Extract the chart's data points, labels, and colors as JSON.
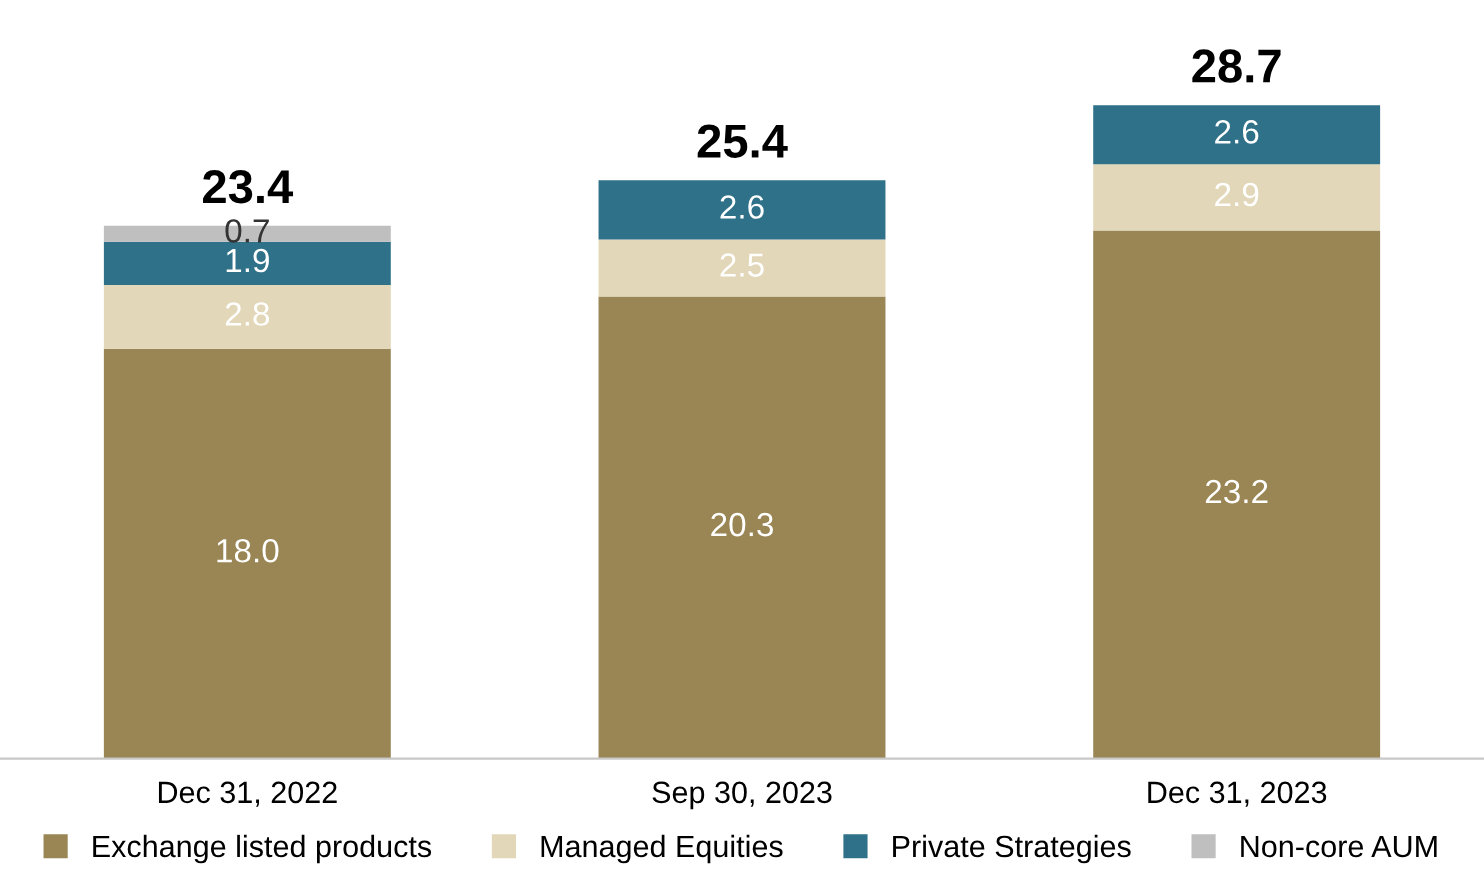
{
  "chart_data": {
    "type": "bar",
    "stacked": true,
    "legend": "bottom",
    "grid": false,
    "categories": [
      "Dec 31, 2022",
      "Sep 30, 2023",
      "Dec 31, 2023"
    ],
    "series": [
      {
        "name": "Exchange listed products",
        "color": "#9a8554",
        "values": [
          18.0,
          20.3,
          23.2
        ],
        "value_labels": [
          "18.0",
          "20.3",
          "23.2"
        ]
      },
      {
        "name": "Managed Equities",
        "color": "#e2d7b8",
        "values": [
          2.8,
          2.5,
          2.9
        ],
        "value_labels": [
          "2.8",
          "2.5",
          "2.9"
        ]
      },
      {
        "name": "Private Strategies",
        "color": "#2f7189",
        "values": [
          1.9,
          2.6,
          2.6
        ],
        "value_labels": [
          "1.9",
          "2.6",
          "2.6"
        ]
      },
      {
        "name": "Non-core AUM",
        "color": "#bfbfbf",
        "values": [
          0.7,
          null,
          null
        ],
        "value_labels": [
          "0.7",
          null,
          null
        ]
      }
    ],
    "totals": [
      "23.4",
      "25.4",
      "28.7"
    ]
  }
}
